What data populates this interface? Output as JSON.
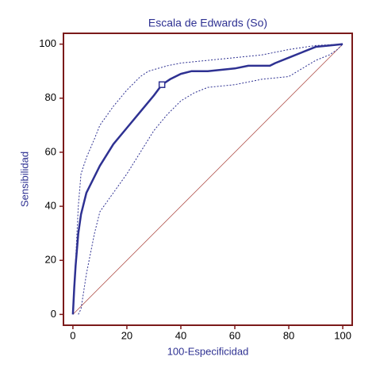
{
  "chart_data": {
    "type": "line",
    "title": "Escala de Edwards (So)",
    "x_label": "100-Especificidad",
    "y_label": "Sensibilidad",
    "xlim": [
      -3.5,
      103.5
    ],
    "ylim": [
      -4,
      104
    ],
    "xticks": [
      0,
      20,
      40,
      60,
      80,
      100
    ],
    "yticks": [
      0,
      20,
      40,
      60,
      80,
      100
    ],
    "frame_color": "#7b1a1a",
    "text_color": "#2e3192",
    "series": [
      {
        "color": "#b0504a",
        "style": "solid",
        "width": 0.8,
        "x": [
          0,
          100
        ],
        "values": [
          0,
          100
        ]
      },
      {
        "color": "#2e3192",
        "style": "dotted",
        "width": 1,
        "x": [
          0,
          1,
          2,
          3,
          5,
          8,
          10,
          15,
          20,
          25,
          28,
          35,
          40,
          50,
          60,
          70,
          80,
          90,
          100
        ],
        "values": [
          0,
          20,
          40,
          52,
          58,
          65,
          70,
          77,
          83,
          88,
          90,
          92,
          93,
          94,
          95,
          96,
          98,
          99.5,
          100
        ]
      },
      {
        "color": "#2e3192",
        "style": "dotted",
        "width": 1,
        "x": [
          2,
          3,
          5,
          8,
          10,
          15,
          20,
          25,
          30,
          35,
          40,
          45,
          50,
          60,
          70,
          80,
          85,
          90,
          95,
          98,
          100
        ],
        "values": [
          0,
          2,
          15,
          30,
          38,
          45,
          52,
          60,
          68,
          74,
          79,
          82,
          84,
          85,
          87,
          88,
          91,
          94,
          96,
          98,
          100
        ]
      },
      {
        "color": "#2e3192",
        "style": "solid",
        "width": 2.5,
        "x": [
          0,
          0.5,
          1,
          2,
          3,
          5,
          10,
          15,
          20,
          25,
          30,
          33,
          36,
          40,
          44,
          50,
          55,
          60,
          65,
          73,
          75,
          80,
          85,
          90,
          95,
          100
        ],
        "values": [
          0,
          10,
          18,
          30,
          37,
          45,
          55,
          63,
          69,
          75,
          81,
          85,
          87,
          89,
          90,
          90,
          90.5,
          91,
          92,
          92,
          93,
          95,
          97,
          99,
          99.5,
          100
        ]
      }
    ],
    "markers": [
      {
        "x": 33,
        "y": 85
      }
    ]
  }
}
